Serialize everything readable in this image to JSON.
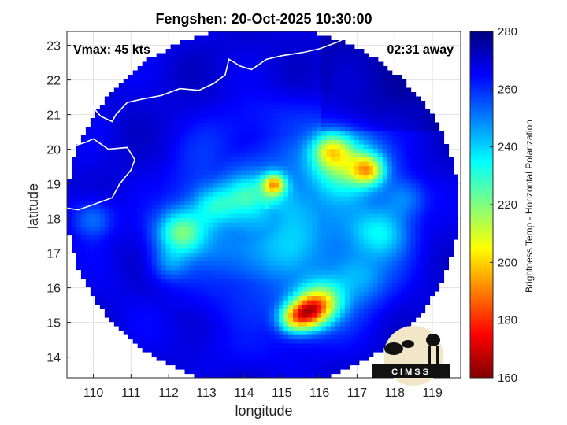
{
  "chart_data": {
    "type": "heatmap",
    "title": "Fengshen: 20-Oct-2025 10:30:00",
    "xlabel": "longitude",
    "ylabel": "latitude",
    "xlim": [
      109.3,
      119.75
    ],
    "ylim": [
      13.4,
      23.4
    ],
    "xticks": [
      110,
      111,
      112,
      113,
      114,
      115,
      116,
      117,
      118,
      119
    ],
    "yticks": [
      14,
      15,
      16,
      17,
      18,
      19,
      20,
      21,
      22,
      23
    ],
    "grid": true,
    "swath": {
      "center_lon": 114.5,
      "center_lat": 18.35,
      "radius_deg": 5.2
    },
    "background_temp": 270,
    "features": [
      {
        "lon": 115.1,
        "lat": 17.8,
        "sigma": 1.8,
        "depth": 25
      },
      {
        "lon": 116.7,
        "lat": 19.6,
        "sigma": 0.6,
        "depth": 40
      },
      {
        "lon": 117.3,
        "lat": 19.4,
        "sigma": 0.3,
        "depth": 45
      },
      {
        "lon": 116.3,
        "lat": 20.0,
        "sigma": 0.35,
        "depth": 35
      },
      {
        "lon": 114.8,
        "lat": 19.0,
        "sigma": 0.22,
        "depth": 55
      },
      {
        "lon": 114.1,
        "lat": 18.7,
        "sigma": 0.4,
        "depth": 20
      },
      {
        "lon": 115.7,
        "lat": 15.3,
        "sigma": 0.35,
        "depth": 65
      },
      {
        "lon": 116.1,
        "lat": 15.6,
        "sigma": 0.4,
        "depth": 45
      },
      {
        "lon": 115.3,
        "lat": 15.1,
        "sigma": 0.3,
        "depth": 40
      },
      {
        "lon": 112.3,
        "lat": 17.6,
        "sigma": 0.45,
        "depth": 40
      },
      {
        "lon": 113.2,
        "lat": 18.4,
        "sigma": 0.4,
        "depth": 25
      },
      {
        "lon": 117.6,
        "lat": 17.6,
        "sigma": 0.5,
        "depth": 25
      },
      {
        "lon": 118.3,
        "lat": 18.6,
        "sigma": 0.4,
        "depth": 15
      },
      {
        "lon": 112.0,
        "lat": 16.7,
        "sigma": 0.35,
        "depth": 15
      },
      {
        "lon": 117.0,
        "lat": 16.3,
        "sigma": 0.5,
        "depth": 18
      },
      {
        "lon": 110.0,
        "lat": 18.0,
        "sigma": 0.4,
        "depth": 18
      }
    ],
    "coastline": [
      [
        [
          109.3,
          19.95
        ],
        [
          109.5,
          20.1
        ],
        [
          109.8,
          20.2
        ],
        [
          110.0,
          20.3
        ],
        [
          110.4,
          20.0
        ],
        [
          110.9,
          20.05
        ],
        [
          111.1,
          19.7
        ],
        [
          111.0,
          19.4
        ],
        [
          110.7,
          19.0
        ],
        [
          110.5,
          18.6
        ],
        [
          110.0,
          18.4
        ],
        [
          109.6,
          18.25
        ],
        [
          109.3,
          18.3
        ]
      ],
      [
        [
          109.3,
          21.6
        ],
        [
          109.55,
          21.5
        ],
        [
          109.8,
          21.4
        ],
        [
          110.0,
          21.2
        ],
        [
          110.2,
          20.95
        ],
        [
          110.5,
          20.8
        ],
        [
          110.6,
          21.0
        ],
        [
          110.9,
          21.35
        ],
        [
          111.3,
          21.45
        ],
        [
          111.8,
          21.55
        ],
        [
          112.3,
          21.75
        ],
        [
          112.8,
          21.7
        ],
        [
          113.2,
          21.9
        ],
        [
          113.5,
          22.15
        ],
        [
          113.6,
          22.6
        ],
        [
          113.9,
          22.4
        ],
        [
          114.2,
          22.3
        ],
        [
          114.6,
          22.6
        ],
        [
          115.0,
          22.7
        ],
        [
          115.6,
          22.8
        ],
        [
          116.0,
          22.9
        ],
        [
          116.5,
          23.1
        ],
        [
          116.9,
          23.35
        ],
        [
          117.2,
          23.4
        ]
      ]
    ],
    "annotations": {
      "vmax": "Vmax: 45 kts",
      "time_away": "02:31 away"
    },
    "colorbar": {
      "label": "Brightness Temp - Horizontal Polarization",
      "min": 160,
      "max": 280,
      "ticks": [
        160,
        180,
        200,
        220,
        240,
        260,
        280
      ],
      "colormap": [
        "#7f0000",
        "#ff0000",
        "#ff7f00",
        "#ffff00",
        "#7fff7f",
        "#00ffff",
        "#007fff",
        "#0000ff",
        "#00007f"
      ]
    }
  },
  "logo": {
    "text": "CIMSS"
  }
}
